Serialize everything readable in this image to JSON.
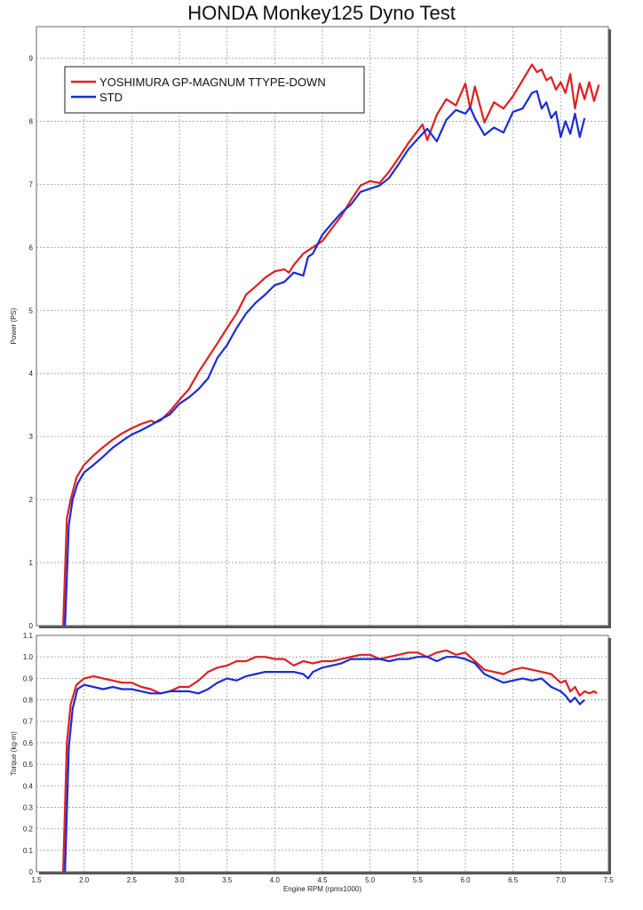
{
  "title": "HONDA Monkey125 Dyno Test",
  "colors": {
    "yoshimura": "#dd2020",
    "std": "#1a2bd6",
    "grid": "#9a9a9a",
    "frame": "#666666"
  },
  "chart_data": [
    {
      "type": "line",
      "ylabel": "Power (PS)",
      "xlim": [
        1.5,
        7.5
      ],
      "ylim": [
        0,
        9.5
      ],
      "ytick_values": [
        0,
        1,
        2,
        3,
        4,
        5,
        6,
        7,
        8,
        9
      ],
      "ytick_labels": [
        "0",
        "1",
        "2",
        "3",
        "4",
        "5",
        "6",
        "7",
        "8",
        "9"
      ],
      "grid": true,
      "legend_position": "top-left",
      "series": [
        {
          "name": "YOSHIMURA GP-MAGNUM TTYPE-DOWN",
          "color": "#dd2020",
          "x": [
            1.78,
            1.82,
            1.86,
            1.92,
            2.0,
            2.1,
            2.2,
            2.3,
            2.4,
            2.5,
            2.6,
            2.7,
            2.75,
            2.8,
            2.9,
            3.0,
            3.1,
            3.2,
            3.3,
            3.4,
            3.5,
            3.6,
            3.7,
            3.8,
            3.9,
            4.0,
            4.1,
            4.15,
            4.2,
            4.3,
            4.4,
            4.5,
            4.6,
            4.7,
            4.8,
            4.9,
            5.0,
            5.1,
            5.2,
            5.3,
            5.4,
            5.5,
            5.55,
            5.6,
            5.7,
            5.8,
            5.85,
            5.9,
            6.0,
            6.05,
            6.1,
            6.2,
            6.3,
            6.4,
            6.5,
            6.6,
            6.7,
            6.75,
            6.8,
            6.85,
            6.9,
            6.95,
            7.0,
            7.05,
            7.1,
            7.15,
            7.2,
            7.25,
            7.3,
            7.35,
            7.4
          ],
          "y": [
            0,
            1.7,
            2.0,
            2.35,
            2.55,
            2.7,
            2.83,
            2.95,
            3.05,
            3.13,
            3.2,
            3.25,
            3.22,
            3.25,
            3.4,
            3.58,
            3.75,
            4.02,
            4.25,
            4.48,
            4.72,
            4.95,
            5.25,
            5.38,
            5.52,
            5.62,
            5.65,
            5.6,
            5.72,
            5.9,
            6.0,
            6.1,
            6.3,
            6.5,
            6.75,
            6.98,
            7.05,
            7.02,
            7.2,
            7.42,
            7.65,
            7.85,
            7.95,
            7.7,
            8.1,
            8.35,
            8.3,
            8.25,
            8.6,
            8.2,
            8.55,
            7.98,
            8.3,
            8.2,
            8.4,
            8.65,
            8.9,
            8.78,
            8.82,
            8.65,
            8.7,
            8.5,
            8.62,
            8.45,
            8.75,
            8.2,
            8.6,
            8.35,
            8.62,
            8.32,
            8.58
          ]
        },
        {
          "name": "STD",
          "color": "#1a2bd6",
          "x": [
            1.8,
            1.84,
            1.88,
            1.93,
            2.0,
            2.1,
            2.2,
            2.3,
            2.4,
            2.5,
            2.6,
            2.7,
            2.8,
            2.9,
            3.0,
            3.1,
            3.2,
            3.3,
            3.4,
            3.5,
            3.6,
            3.7,
            3.8,
            3.9,
            4.0,
            4.1,
            4.2,
            4.3,
            4.35,
            4.4,
            4.5,
            4.6,
            4.7,
            4.8,
            4.9,
            5.0,
            5.1,
            5.2,
            5.3,
            5.4,
            5.5,
            5.6,
            5.7,
            5.8,
            5.9,
            6.0,
            6.05,
            6.1,
            6.2,
            6.3,
            6.4,
            6.5,
            6.6,
            6.7,
            6.75,
            6.8,
            6.85,
            6.9,
            6.95,
            7.0,
            7.05,
            7.1,
            7.15,
            7.2,
            7.25
          ],
          "y": [
            0,
            1.6,
            2.0,
            2.25,
            2.43,
            2.55,
            2.68,
            2.82,
            2.93,
            3.03,
            3.1,
            3.18,
            3.27,
            3.35,
            3.52,
            3.62,
            3.75,
            3.92,
            4.25,
            4.45,
            4.72,
            4.95,
            5.12,
            5.25,
            5.4,
            5.45,
            5.6,
            5.55,
            5.85,
            5.9,
            6.2,
            6.38,
            6.55,
            6.68,
            6.88,
            6.93,
            6.98,
            7.1,
            7.32,
            7.55,
            7.72,
            7.88,
            7.68,
            8.02,
            8.18,
            8.12,
            8.22,
            8.05,
            7.78,
            7.9,
            7.82,
            8.15,
            8.2,
            8.45,
            8.48,
            8.2,
            8.3,
            8.05,
            8.15,
            7.75,
            8.0,
            7.8,
            8.12,
            7.75,
            8.05
          ]
        }
      ]
    },
    {
      "type": "line",
      "ylabel": "Torque (kg-m)",
      "xlabel": "Engine RPM (rpmx1000)",
      "xlim": [
        1.5,
        7.5
      ],
      "ylim": [
        0,
        1.1
      ],
      "xtick_values": [
        1.5,
        2.0,
        2.5,
        3.0,
        3.5,
        4.0,
        4.5,
        5.0,
        5.5,
        6.0,
        6.5,
        7.0,
        7.5
      ],
      "xtick_labels": [
        "1.5",
        "2.0",
        "2.5",
        "3.0",
        "3.5",
        "4.0",
        "4.5",
        "5.0",
        "5.5",
        "6.0",
        "6.5",
        "7.0",
        "7.5"
      ],
      "ytick_values": [
        0,
        0.1,
        0.2,
        0.3,
        0.4,
        0.5,
        0.6,
        0.7,
        0.8,
        0.9,
        1.0,
        1.1
      ],
      "ytick_labels": [
        "0",
        "0.1",
        "0.2",
        "0.3",
        "0.4",
        "0.5",
        "0.6",
        "0.7",
        "0.8",
        "0.9",
        "1.0",
        "1.1"
      ],
      "grid": true,
      "series": [
        {
          "name": "YOSHIMURA GP-MAGNUM TTYPE-DOWN",
          "color": "#dd2020",
          "x": [
            1.78,
            1.82,
            1.86,
            1.92,
            2.0,
            2.1,
            2.2,
            2.3,
            2.4,
            2.5,
            2.6,
            2.7,
            2.8,
            2.9,
            3.0,
            3.1,
            3.2,
            3.3,
            3.4,
            3.5,
            3.6,
            3.7,
            3.8,
            3.9,
            4.0,
            4.1,
            4.2,
            4.3,
            4.4,
            4.5,
            4.6,
            4.7,
            4.8,
            4.9,
            5.0,
            5.1,
            5.2,
            5.3,
            5.4,
            5.5,
            5.6,
            5.7,
            5.8,
            5.9,
            6.0,
            6.1,
            6.2,
            6.3,
            6.4,
            6.5,
            6.6,
            6.7,
            6.8,
            6.9,
            7.0,
            7.05,
            7.1,
            7.15,
            7.2,
            7.25,
            7.3,
            7.35,
            7.38
          ],
          "y": [
            0,
            0.6,
            0.78,
            0.87,
            0.9,
            0.91,
            0.9,
            0.89,
            0.88,
            0.88,
            0.86,
            0.85,
            0.83,
            0.84,
            0.86,
            0.86,
            0.89,
            0.93,
            0.95,
            0.96,
            0.98,
            0.98,
            1.0,
            1.0,
            0.99,
            0.99,
            0.96,
            0.98,
            0.97,
            0.98,
            0.98,
            0.99,
            1.0,
            1.01,
            1.01,
            0.99,
            1.0,
            1.01,
            1.02,
            1.02,
            1.0,
            1.02,
            1.03,
            1.01,
            1.02,
            0.98,
            0.94,
            0.93,
            0.92,
            0.94,
            0.95,
            0.94,
            0.93,
            0.92,
            0.88,
            0.89,
            0.84,
            0.86,
            0.82,
            0.84,
            0.83,
            0.84,
            0.83
          ]
        },
        {
          "name": "STD",
          "color": "#1a2bd6",
          "x": [
            1.8,
            1.84,
            1.88,
            1.93,
            2.0,
            2.1,
            2.2,
            2.3,
            2.4,
            2.5,
            2.6,
            2.7,
            2.8,
            2.9,
            3.0,
            3.1,
            3.2,
            3.3,
            3.4,
            3.5,
            3.6,
            3.7,
            3.8,
            3.9,
            4.0,
            4.1,
            4.2,
            4.3,
            4.35,
            4.4,
            4.5,
            4.6,
            4.7,
            4.8,
            4.9,
            5.0,
            5.1,
            5.2,
            5.3,
            5.4,
            5.5,
            5.6,
            5.7,
            5.8,
            5.9,
            6.0,
            6.1,
            6.2,
            6.3,
            6.4,
            6.5,
            6.6,
            6.7,
            6.8,
            6.9,
            7.0,
            7.05,
            7.1,
            7.15,
            7.2,
            7.25
          ],
          "y": [
            0,
            0.58,
            0.76,
            0.85,
            0.87,
            0.86,
            0.85,
            0.86,
            0.85,
            0.85,
            0.84,
            0.83,
            0.83,
            0.84,
            0.84,
            0.84,
            0.83,
            0.85,
            0.88,
            0.9,
            0.89,
            0.91,
            0.92,
            0.93,
            0.93,
            0.93,
            0.93,
            0.92,
            0.9,
            0.93,
            0.95,
            0.96,
            0.97,
            0.99,
            0.99,
            0.99,
            0.99,
            0.98,
            0.99,
            0.99,
            1.0,
            1.0,
            0.98,
            1.0,
            1.0,
            0.99,
            0.97,
            0.92,
            0.9,
            0.88,
            0.89,
            0.9,
            0.89,
            0.9,
            0.86,
            0.84,
            0.82,
            0.79,
            0.81,
            0.78,
            0.8
          ]
        }
      ]
    }
  ]
}
